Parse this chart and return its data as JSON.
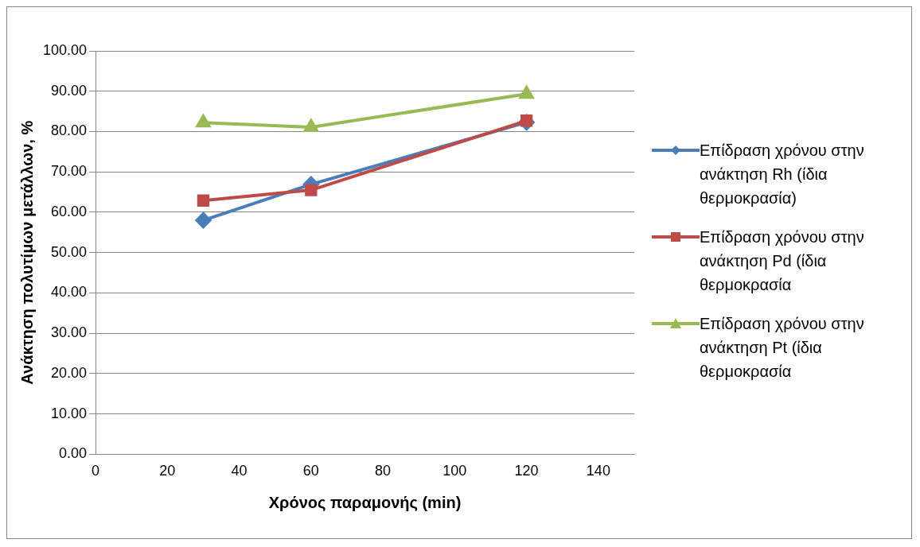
{
  "chart_data": {
    "type": "line",
    "xlabel": "Χρόνος παραμονής (min)",
    "ylabel": "Ανάκτηση πολυτίμων μετάλλων, %",
    "x": [
      30,
      60,
      120
    ],
    "series": [
      {
        "name": "Επίδραση χρόνου στην ανάκτηση Rh (ίδια θερμοκρασία)",
        "color": "#4a7ebb",
        "marker": "diamond",
        "values": [
          58.0,
          66.9,
          82.3
        ]
      },
      {
        "name": "Επίδραση χρόνου στην ανάκτηση Pd (ίδια θερμοκρασία",
        "color": "#be4b48",
        "marker": "square",
        "values": [
          62.9,
          65.5,
          82.7
        ]
      },
      {
        "name": "Επίδραση χρόνου στην ανάκτηση Pt (ίδια θερμοκρασία",
        "color": "#98b954",
        "marker": "triangle",
        "values": [
          82.2,
          81.1,
          89.3
        ]
      }
    ],
    "xlim": [
      0,
      150
    ],
    "xticks": [
      0,
      20,
      40,
      60,
      80,
      100,
      120,
      140
    ],
    "ylim": [
      0,
      100
    ],
    "yticks": [
      {
        "value": 0,
        "label": "0.00"
      },
      {
        "value": 10,
        "label": "10.00"
      },
      {
        "value": 20,
        "label": "20.00"
      },
      {
        "value": 30,
        "label": "30.00"
      },
      {
        "value": 40,
        "label": "40.00"
      },
      {
        "value": 50,
        "label": "50.00"
      },
      {
        "value": 60,
        "label": "60.00"
      },
      {
        "value": 70,
        "label": "70.00"
      },
      {
        "value": 80,
        "label": "80.00"
      },
      {
        "value": 90,
        "label": "90.00"
      },
      {
        "value": 100,
        "label": "100.00"
      }
    ],
    "grid": "y",
    "legend": "right",
    "line_style": "solid"
  }
}
